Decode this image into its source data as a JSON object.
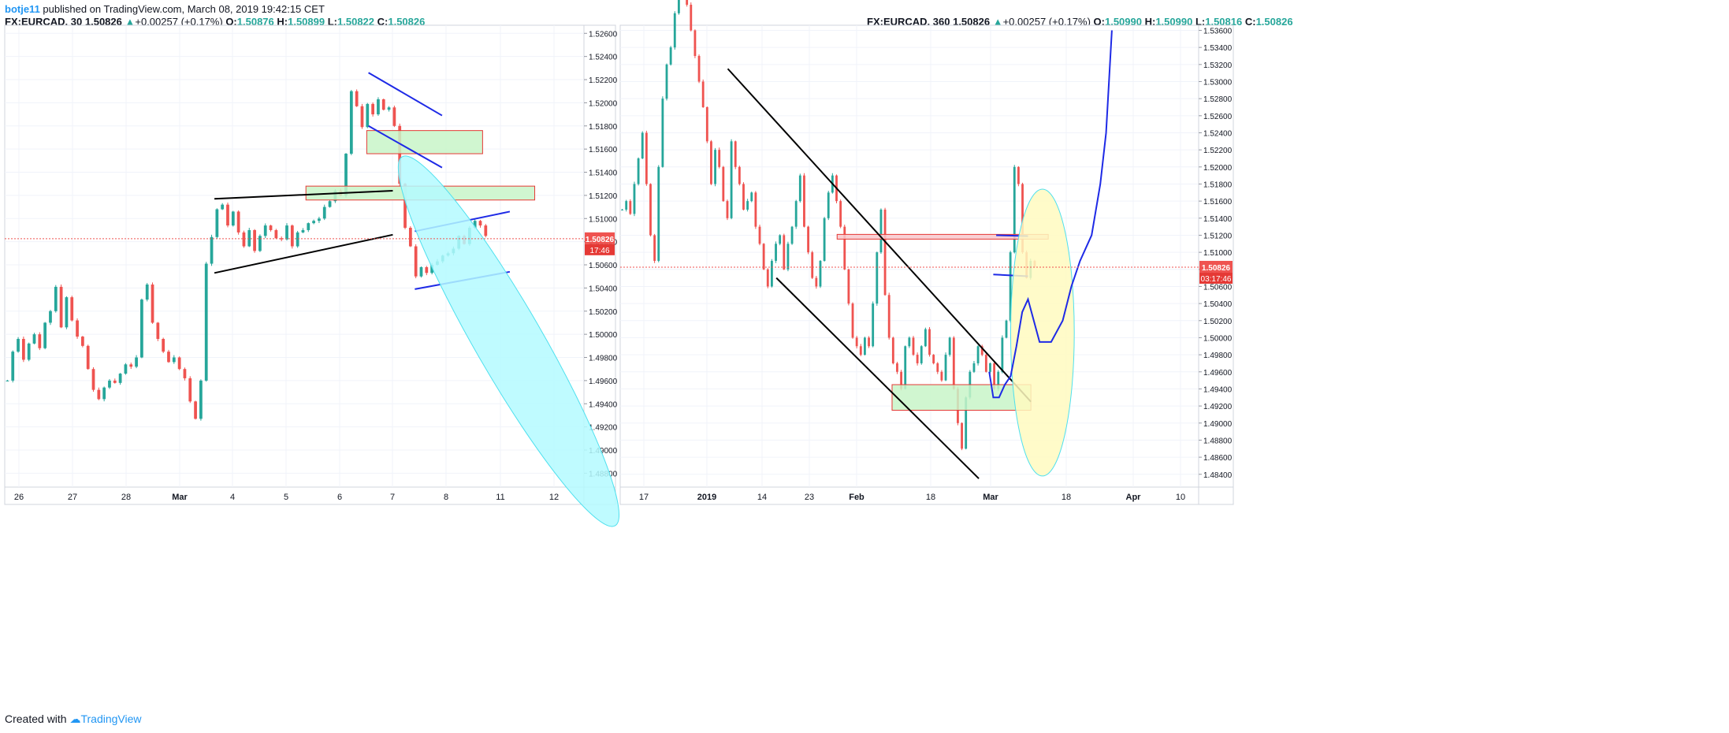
{
  "header": {
    "user": "botje11",
    "text": " published on TradingView.com, March 08, 2019 19:42:15 CET"
  },
  "footer": {
    "prefix": "Created with",
    "brand": "TradingView"
  },
  "colors": {
    "up": "#26a69a",
    "down": "#ef5350",
    "blue_line": "#1e2ae6",
    "zone_green": "#c8f5c8",
    "zone_red_border": "#e53935",
    "zone_pink": "#f8c8cc",
    "ellipse_cyan": "#b4faff",
    "ellipse_yellow": "#fffac0"
  },
  "chart_data": [
    {
      "type": "candlestick",
      "symbol_line": {
        "symbol": "FX:EURCAD, 30",
        "last": "1.50826",
        "arrow": "▲",
        "change": "+0.00257 (+0.17%)",
        "o_label": "O:",
        "o": "1.50876",
        "h_label": "H:",
        "h": "1.50899",
        "l_label": "L:",
        "l": "1.50822",
        "c_label": "C:",
        "c": "1.50826"
      },
      "timeframe_minutes": 30,
      "x_ticks": [
        "26",
        "27",
        "28",
        "Mar",
        "4",
        "5",
        "6",
        "7",
        "8",
        "11",
        "12"
      ],
      "y_ticks": [
        "1.52600",
        "1.52400",
        "1.52200",
        "1.52000",
        "1.51800",
        "1.51600",
        "1.51400",
        "1.51200",
        "1.51000",
        "1.50800",
        "1.50600",
        "1.50400",
        "1.50200",
        "1.50000",
        "1.49800",
        "1.49600",
        "1.49400",
        "1.49200",
        "1.49000",
        "1.48800"
      ],
      "ylim": [
        1.4868,
        1.5267
      ],
      "price_label": "1.50826",
      "countdown_label": "17:46",
      "last_price": 1.50826,
      "price_path": [
        1.496,
        1.4985,
        1.4996,
        1.4978,
        1.4992,
        1.5,
        1.4988,
        1.501,
        1.502,
        1.5041,
        1.5006,
        1.5032,
        1.5012,
        1.4998,
        1.499,
        1.497,
        1.4952,
        1.4944,
        1.4954,
        1.496,
        1.4958,
        1.4966,
        1.4974,
        1.4972,
        1.498,
        1.503,
        1.5043,
        1.501,
        1.4996,
        1.4985,
        1.4976,
        1.498,
        1.497,
        1.4962,
        1.4942,
        1.4927,
        1.496,
        1.5061,
        1.5084,
        1.5108,
        1.5112,
        1.5094,
        1.5106,
        1.5088,
        1.5076,
        1.509,
        1.5072,
        1.5085,
        1.5094,
        1.509,
        1.5083,
        1.5082,
        1.5094,
        1.5076,
        1.5088,
        1.509,
        1.5096,
        1.5098,
        1.51,
        1.511,
        1.5115,
        1.5124,
        1.512,
        1.5156,
        1.521,
        1.5197,
        1.5179,
        1.5199,
        1.519,
        1.5203,
        1.5194,
        1.5196,
        1.518,
        1.513,
        1.5092,
        1.5076,
        1.505,
        1.5058,
        1.5053,
        1.506,
        1.5063,
        1.5068,
        1.507,
        1.5074,
        1.5085,
        1.5078,
        1.5092,
        1.5098,
        1.5094,
        1.5085
      ],
      "annotations": [
        {
          "kind": "zone",
          "label": "supply-zone-1",
          "x0": 0.625,
          "x1": 0.825,
          "y0": 1.5156,
          "y1": 1.5176
        },
        {
          "kind": "zone",
          "label": "support-zone",
          "x0": 0.52,
          "x1": 0.915,
          "y0": 1.5116,
          "y1": 1.5128
        },
        {
          "kind": "trendline",
          "color": "black",
          "x0": 0.362,
          "y0": 1.5117,
          "x1": 0.67,
          "y1": 1.5124
        },
        {
          "kind": "trendline",
          "color": "black",
          "x0": 0.362,
          "y0": 1.5053,
          "x1": 0.67,
          "y1": 1.5086
        },
        {
          "kind": "trendline",
          "color": "blue",
          "x0": 0.628,
          "y0": 1.5226,
          "x1": 0.755,
          "y1": 1.5189
        },
        {
          "kind": "trendline",
          "color": "blue",
          "x0": 0.628,
          "y0": 1.518,
          "x1": 0.755,
          "y1": 1.5144
        },
        {
          "kind": "trendline",
          "color": "blue",
          "x0": 0.708,
          "y0": 1.5089,
          "x1": 0.872,
          "y1": 1.5106
        },
        {
          "kind": "trendline",
          "color": "blue",
          "x0": 0.708,
          "y0": 1.5039,
          "x1": 0.872,
          "y1": 1.5054
        },
        {
          "kind": "ellipse",
          "color": "cyan",
          "cx": 0.87,
          "cy": 1.4994,
          "rx": 0.058,
          "ry": 0.0046,
          "rotate": -30
        }
      ]
    },
    {
      "type": "candlestick",
      "symbol_line": {
        "symbol": "FX:EURCAD, 360",
        "last": "1.50826",
        "arrow": "▲",
        "change": "+0.00257 (+0.17%)",
        "o_label": "O:",
        "o": "1.50990",
        "h_label": "H:",
        "h": "1.50990",
        "l_label": "L:",
        "l": "1.50816",
        "c_label": "C:",
        "c": "1.50826"
      },
      "timeframe_minutes": 360,
      "x_ticks": [
        "17",
        "2019",
        "14",
        "23",
        "Feb",
        "18",
        "Mar",
        "18",
        "Apr",
        "10"
      ],
      "y_ticks": [
        "1.53600",
        "1.53400",
        "1.53200",
        "1.53000",
        "1.52800",
        "1.52600",
        "1.52400",
        "1.52200",
        "1.52000",
        "1.51800",
        "1.51600",
        "1.51400",
        "1.51200",
        "1.51000",
        "1.50800",
        "1.50600",
        "1.50400",
        "1.50200",
        "1.50000",
        "1.49800",
        "1.49600",
        "1.49400",
        "1.49200",
        "1.49000",
        "1.48800",
        "1.48600",
        "1.48400"
      ],
      "ylim": [
        1.4825,
        1.5366
      ],
      "price_label": "1.50826",
      "countdown_label": "03:17:46",
      "last_price": 1.50826,
      "price_path": [
        1.515,
        1.516,
        1.5145,
        1.518,
        1.521,
        1.524,
        1.518,
        1.512,
        1.509,
        1.52,
        1.528,
        1.532,
        1.534,
        1.538,
        1.54,
        1.542,
        1.539,
        1.536,
        1.533,
        1.53,
        1.527,
        1.523,
        1.518,
        1.522,
        1.52,
        1.516,
        1.514,
        1.523,
        1.52,
        1.518,
        1.515,
        1.516,
        1.517,
        1.513,
        1.511,
        1.508,
        1.506,
        1.509,
        1.511,
        1.512,
        1.508,
        1.511,
        1.513,
        1.516,
        1.519,
        1.513,
        1.51,
        1.507,
        1.506,
        1.509,
        1.514,
        1.517,
        1.519,
        1.516,
        1.513,
        1.508,
        1.504,
        1.5,
        1.499,
        1.498,
        1.5,
        1.499,
        1.504,
        1.51,
        1.515,
        1.505,
        1.5,
        1.497,
        1.496,
        1.494,
        1.499,
        1.5,
        1.498,
        1.497,
        1.499,
        1.501,
        1.498,
        1.497,
        1.496,
        1.495,
        1.498,
        1.5,
        1.494,
        1.49,
        1.487,
        1.493,
        1.496,
        1.497,
        1.499,
        1.498,
        1.496,
        1.497,
        1.494,
        1.496,
        1.5,
        1.502,
        1.51,
        1.52,
        1.518,
        1.51,
        1.507,
        1.509,
        1.5083
      ],
      "annotations": [
        {
          "kind": "zone",
          "label": "demand-zone",
          "x0": 0.47,
          "x1": 0.71,
          "y0": 1.4915,
          "y1": 1.4945
        },
        {
          "kind": "zone-pink",
          "label": "resistance-zone",
          "x0": 0.375,
          "x1": 0.74,
          "y0": 1.5116,
          "y1": 1.5121
        },
        {
          "kind": "trendline",
          "color": "black",
          "x0": 0.186,
          "y0": 1.5315,
          "x1": 0.71,
          "y1": 1.4925
        },
        {
          "kind": "trendline",
          "color": "black",
          "x0": 0.27,
          "y0": 1.507,
          "x1": 0.62,
          "y1": 1.4835
        },
        {
          "kind": "trendline",
          "color": "blue",
          "x0": 0.65,
          "y0": 1.512,
          "x1": 0.705,
          "y1": 1.5119
        },
        {
          "kind": "trendline",
          "color": "blue",
          "x0": 0.645,
          "y0": 1.5074,
          "x1": 0.705,
          "y1": 1.5072
        },
        {
          "kind": "ellipse",
          "color": "yellow",
          "cx": 0.73,
          "cy": 1.5006,
          "rx": 0.055,
          "ry": 0.0042,
          "rotate": 0
        },
        {
          "kind": "projection",
          "color": "blue",
          "points": [
            [
              0.638,
              1.496
            ],
            [
              0.645,
              1.493
            ],
            [
              0.655,
              1.493
            ],
            [
              0.665,
              1.4945
            ],
            [
              0.675,
              1.4955
            ],
            [
              0.685,
              1.499
            ],
            [
              0.695,
              1.503
            ],
            [
              0.705,
              1.5045
            ],
            [
              0.715,
              1.502
            ],
            [
              0.725,
              1.4995
            ],
            [
              0.745,
              1.4995
            ],
            [
              0.765,
              1.502
            ],
            [
              0.78,
              1.506
            ],
            [
              0.795,
              1.509
            ],
            [
              0.815,
              1.512
            ],
            [
              0.83,
              1.518
            ],
            [
              0.84,
              1.524
            ],
            [
              0.845,
              1.53
            ],
            [
              0.85,
              1.536
            ]
          ]
        }
      ]
    }
  ]
}
